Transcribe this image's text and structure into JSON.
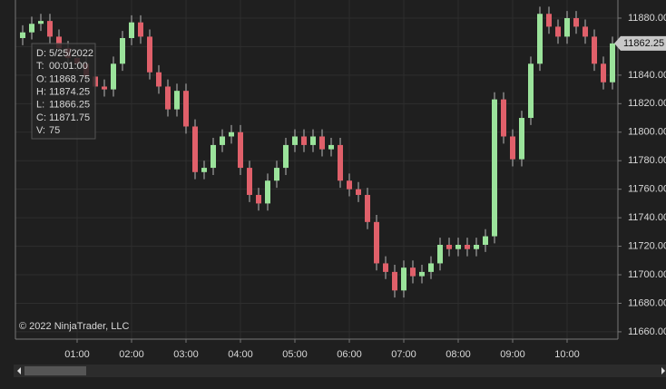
{
  "chart_data": {
    "type": "candlestick",
    "x": [
      "00:00",
      "00:10",
      "00:20",
      "00:30",
      "00:40",
      "00:50",
      "01:00",
      "01:10",
      "01:20",
      "01:30",
      "01:40",
      "01:50",
      "02:00",
      "02:10",
      "02:20",
      "02:30",
      "02:40",
      "02:50",
      "03:00",
      "03:10",
      "03:20",
      "03:30",
      "03:40",
      "03:50",
      "04:00",
      "04:10",
      "04:20",
      "04:30",
      "04:40",
      "04:50",
      "05:00",
      "05:10",
      "05:20",
      "05:30",
      "05:40",
      "05:50",
      "06:00",
      "06:10",
      "06:20",
      "06:30",
      "06:40",
      "06:50",
      "07:00",
      "07:10",
      "07:20",
      "07:30",
      "07:40",
      "07:50",
      "08:00",
      "08:10",
      "08:20",
      "08:30",
      "08:40",
      "08:50",
      "09:00",
      "09:10",
      "09:20",
      "09:30",
      "09:40",
      "09:50",
      "10:00",
      "10:10",
      "10:20",
      "10:30",
      "10:40",
      "10:50"
    ],
    "open": [
      11866,
      11870,
      11876,
      11878,
      11867,
      11859,
      11852,
      11848,
      11839,
      11832,
      11830,
      11848,
      11866,
      11877,
      11867,
      11842,
      11832,
      11816,
      11829,
      11804,
      11772,
      11775,
      11791,
      11797,
      11800,
      11775,
      11756,
      11750,
      11766,
      11775,
      11791,
      11797,
      11791,
      11797,
      11788,
      11791,
      11766,
      11760,
      11756,
      11737,
      11708,
      11702,
      11689,
      11705,
      11699,
      11702,
      11708,
      11721,
      11718,
      11721,
      11718,
      11721,
      11727,
      11823,
      11797,
      11781,
      11810,
      11848,
      11883,
      11874,
      11867,
      11880,
      11874,
      11867,
      11848,
      11835
    ],
    "high": [
      11875,
      11881,
      11883,
      11883,
      11872,
      11864,
      11857,
      11853,
      11844,
      11837,
      11853,
      11871,
      11882,
      11882,
      11872,
      11847,
      11837,
      11834,
      11834,
      11809,
      11780,
      11796,
      11802,
      11805,
      11805,
      11780,
      11761,
      11771,
      11780,
      11796,
      11802,
      11802,
      11802,
      11802,
      11796,
      11796,
      11771,
      11765,
      11761,
      11742,
      11713,
      11707,
      11710,
      11710,
      11707,
      11713,
      11726,
      11726,
      11726,
      11726,
      11726,
      11732,
      11828,
      11828,
      11802,
      11815,
      11853,
      11888,
      11888,
      11879,
      11885,
      11885,
      11879,
      11872,
      11853,
      11867
    ],
    "low": [
      11861,
      11865,
      11871,
      11862,
      11854,
      11847,
      11843,
      11834,
      11827,
      11825,
      11825,
      11843,
      11861,
      11862,
      11837,
      11827,
      11811,
      11811,
      11799,
      11767,
      11767,
      11770,
      11786,
      11792,
      11770,
      11751,
      11745,
      11745,
      11761,
      11770,
      11786,
      11786,
      11786,
      11783,
      11783,
      11761,
      11755,
      11751,
      11732,
      11703,
      11697,
      11684,
      11684,
      11694,
      11694,
      11697,
      11703,
      11713,
      11713,
      11713,
      11713,
      11716,
      11722,
      11792,
      11776,
      11776,
      11805,
      11843,
      11869,
      11862,
      11862,
      11869,
      11862,
      11843,
      11830,
      11830
    ],
    "close": [
      11870,
      11876,
      11878,
      11867,
      11859,
      11852,
      11848,
      11839,
      11832,
      11830,
      11848,
      11866,
      11877,
      11867,
      11842,
      11832,
      11816,
      11829,
      11804,
      11772,
      11775,
      11791,
      11797,
      11800,
      11775,
      11756,
      11750,
      11766,
      11775,
      11791,
      11797,
      11791,
      11797,
      11788,
      11791,
      11766,
      11760,
      11756,
      11737,
      11708,
      11702,
      11689,
      11705,
      11699,
      11702,
      11708,
      11721,
      11718,
      11721,
      11718,
      11721,
      11727,
      11823,
      11797,
      11781,
      11810,
      11848,
      11883,
      11874,
      11867,
      11880,
      11874,
      11867,
      11848,
      11835,
      11862.25
    ],
    "up_color": "#9be39b",
    "down_color": "#e0606a",
    "wick_color": "#b8b8b8",
    "xlim": [
      "00:00",
      "10:56"
    ],
    "xticks": [
      "01:00",
      "02:00",
      "03:00",
      "04:00",
      "05:00",
      "06:00",
      "07:00",
      "08:00",
      "09:00",
      "10:00"
    ],
    "ylim": [
      11655.5,
      11892.7
    ],
    "yticks": [
      {
        "value": 11660,
        "label": "11660.00"
      },
      {
        "value": 11680,
        "label": "11680.00"
      },
      {
        "value": 11700,
        "label": "11700.00"
      },
      {
        "value": 11720,
        "label": "11720.00"
      },
      {
        "value": 11740,
        "label": "11740.00"
      },
      {
        "value": 11760,
        "label": "11760.00"
      },
      {
        "value": 11780,
        "label": "11780.00"
      },
      {
        "value": 11800,
        "label": "11800.00"
      },
      {
        "value": 11820,
        "label": "11820.00"
      },
      {
        "value": 11840,
        "label": "11840.00"
      },
      {
        "value": 11860,
        "label": "11860.00"
      },
      {
        "value": 11880,
        "label": "11880.00"
      }
    ],
    "grid": true
  },
  "tooltip": [
    {
      "label": "D:",
      "value": "5/25/2022"
    },
    {
      "label": "T:",
      "value": "00:01:00"
    },
    {
      "label": "O:",
      "value": 11868.75
    },
    {
      "label": "H:",
      "value": 11874.25
    },
    {
      "label": "L:",
      "value": 11866.25
    },
    {
      "label": "C:",
      "value": 11871.75
    },
    {
      "label": "V:",
      "value": 75
    }
  ],
  "copyright": "© 2022 NinjaTrader, LLC"
}
